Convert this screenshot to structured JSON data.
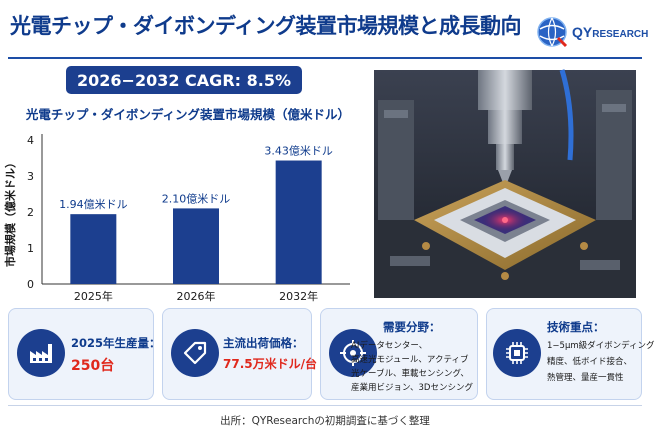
{
  "title": "光電チップ・ダイボンディング装置市場規模と成長動向",
  "logo": {
    "brand_main": "QY",
    "brand_rest": "RESEARCH"
  },
  "cagr": "2026−2032 CAGR: 8.5%",
  "chart_data": {
    "type": "bar",
    "title": "光電チップ・ダイボンディング装置市場規模（億米ドル）",
    "ylabel": "市場規模（億米ドル）",
    "xlabel": "",
    "categories": [
      "2025年",
      "2026年",
      "2032年"
    ],
    "values": [
      1.94,
      2.1,
      3.43
    ],
    "data_labels": [
      "1.94億米ドル",
      "2.10億米ドル",
      "3.43億米ドル"
    ],
    "ylim": [
      0,
      4
    ],
    "yticks": [
      "0",
      "1",
      "2",
      "3",
      "4"
    ],
    "bar_color": "#1c3f8f",
    "grid": false
  },
  "cards": [
    {
      "label": "2025年生産量：",
      "value": "250台",
      "icon": "factory-icon"
    },
    {
      "label": "主流出荷価格：",
      "value": "77.5万米ドル/台",
      "icon": "price-tag-icon"
    },
    {
      "label": "需要分野：",
      "lines": [
        "AIデータセンター、",
        "高速光モジュール、アクティブ",
        "光ケーブル、車載センシング、",
        "産業用ビジョン、3Dセンシング"
      ],
      "icon": "target-icon"
    },
    {
      "label": "技術重点：",
      "lines": [
        "1−5μm級ダイボンディング",
        "精度、低ボイド接合、",
        "熱管理、量産一貫性"
      ],
      "icon": "chip-icon"
    }
  ],
  "footer": "出所：QYResearchの初期調査に基づく整理",
  "colors": {
    "primary": "#1c3f8f",
    "accent": "#e0281c",
    "card_bg": "#eef3fb"
  }
}
